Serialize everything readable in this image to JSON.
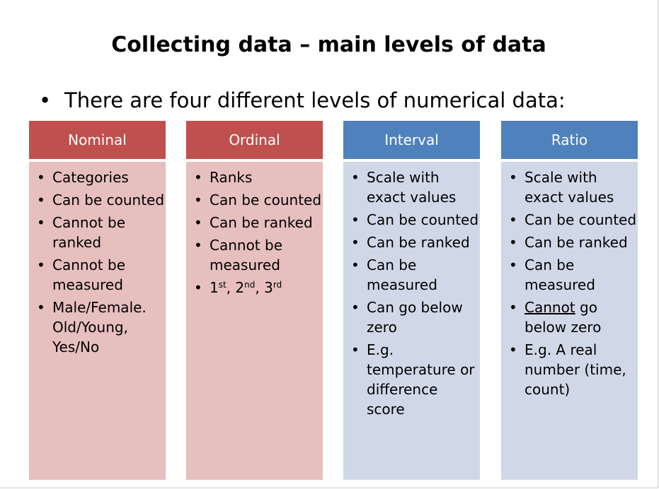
{
  "slide": {
    "title": "Collecting data – main levels of data",
    "intro_bullet": "•",
    "intro": "There are four different levels of numerical data:"
  },
  "colors": {
    "red_header": "#c0504d",
    "red_body": "#e6bfbe",
    "blue_header": "#4f81bd",
    "blue_body": "#d0d8e8"
  },
  "columns": [
    {
      "header": "Nominal",
      "items": [
        "Categories",
        "Can be counted",
        "Cannot be ranked",
        "Cannot be measured",
        "Male/Female. Old/Young, Yes/No"
      ]
    },
    {
      "header": "Ordinal",
      "items": [
        "Ranks",
        "Can be counted",
        "Can be ranked",
        "Cannot be measured"
      ],
      "ordinals": [
        "1",
        "st",
        ", 2",
        "nd",
        ", 3",
        "rd"
      ]
    },
    {
      "header": "Interval",
      "items": [
        "Scale with exact values",
        "Can be counted",
        "Can be ranked",
        "Can be measured",
        "Can go below zero",
        "E.g. temperature or difference score"
      ]
    },
    {
      "header": "Ratio",
      "items": [
        "Scale with exact values",
        "Can be counted",
        "Can be ranked",
        "Can be measured"
      ],
      "below_zero": {
        "underlined": "Cannot",
        "rest": " go below zero"
      },
      "last": "E.g. A real number (time, count)"
    }
  ]
}
